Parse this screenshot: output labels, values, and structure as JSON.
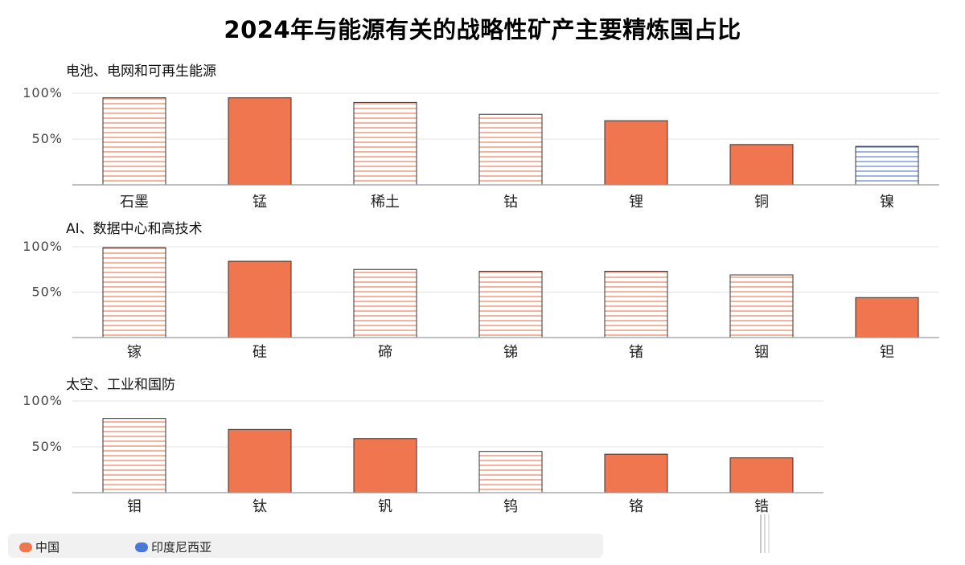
{
  "title": "2024年与能源有关的战略性矿产主要精炼国占比",
  "legend": [
    {
      "label": "中国",
      "color": "#f07650"
    },
    {
      "label": "印度尼西亚",
      "color": "#4a78d8"
    }
  ],
  "chart_data": [
    {
      "type": "bar",
      "title": "电池、电网和可再生能源",
      "categories": [
        "石墨",
        "锰",
        "稀土",
        "钴",
        "锂",
        "铜",
        "镍"
      ],
      "values": [
        95,
        95,
        90,
        77,
        70,
        44,
        42
      ],
      "country": [
        "中国",
        "中国",
        "中国",
        "中国",
        "中国",
        "中国",
        "印度尼西亚"
      ],
      "style": [
        "striped",
        "solid",
        "striped",
        "striped",
        "solid",
        "solid",
        "striped"
      ],
      "yticks": [
        "50%",
        "100%"
      ],
      "ylim": [
        0,
        100
      ],
      "grid": true
    },
    {
      "type": "bar",
      "title": "AI、数据中心和高技术",
      "categories": [
        "镓",
        "硅",
        "碲",
        "锑",
        "锗",
        "铟",
        "钽"
      ],
      "values": [
        99,
        84,
        75,
        73,
        73,
        69,
        44
      ],
      "country": [
        "中国",
        "中国",
        "中国",
        "中国",
        "中国",
        "中国",
        "中国"
      ],
      "style": [
        "striped",
        "solid",
        "striped",
        "striped",
        "striped",
        "striped",
        "solid"
      ],
      "yticks": [
        "50%",
        "100%"
      ],
      "ylim": [
        0,
        100
      ],
      "grid": true
    },
    {
      "type": "bar",
      "title": "太空、工业和国防",
      "categories": [
        "钼",
        "钛",
        "钒",
        "钨",
        "铬",
        "锆"
      ],
      "values": [
        81,
        69,
        59,
        45,
        42,
        38
      ],
      "country": [
        "中国",
        "中国",
        "中国",
        "中国",
        "中国",
        "中国"
      ],
      "style": [
        "striped",
        "solid",
        "solid",
        "striped",
        "solid",
        "solid"
      ],
      "yticks": [
        "50%",
        "100%"
      ],
      "ylim": [
        0,
        100
      ],
      "grid": true
    }
  ]
}
